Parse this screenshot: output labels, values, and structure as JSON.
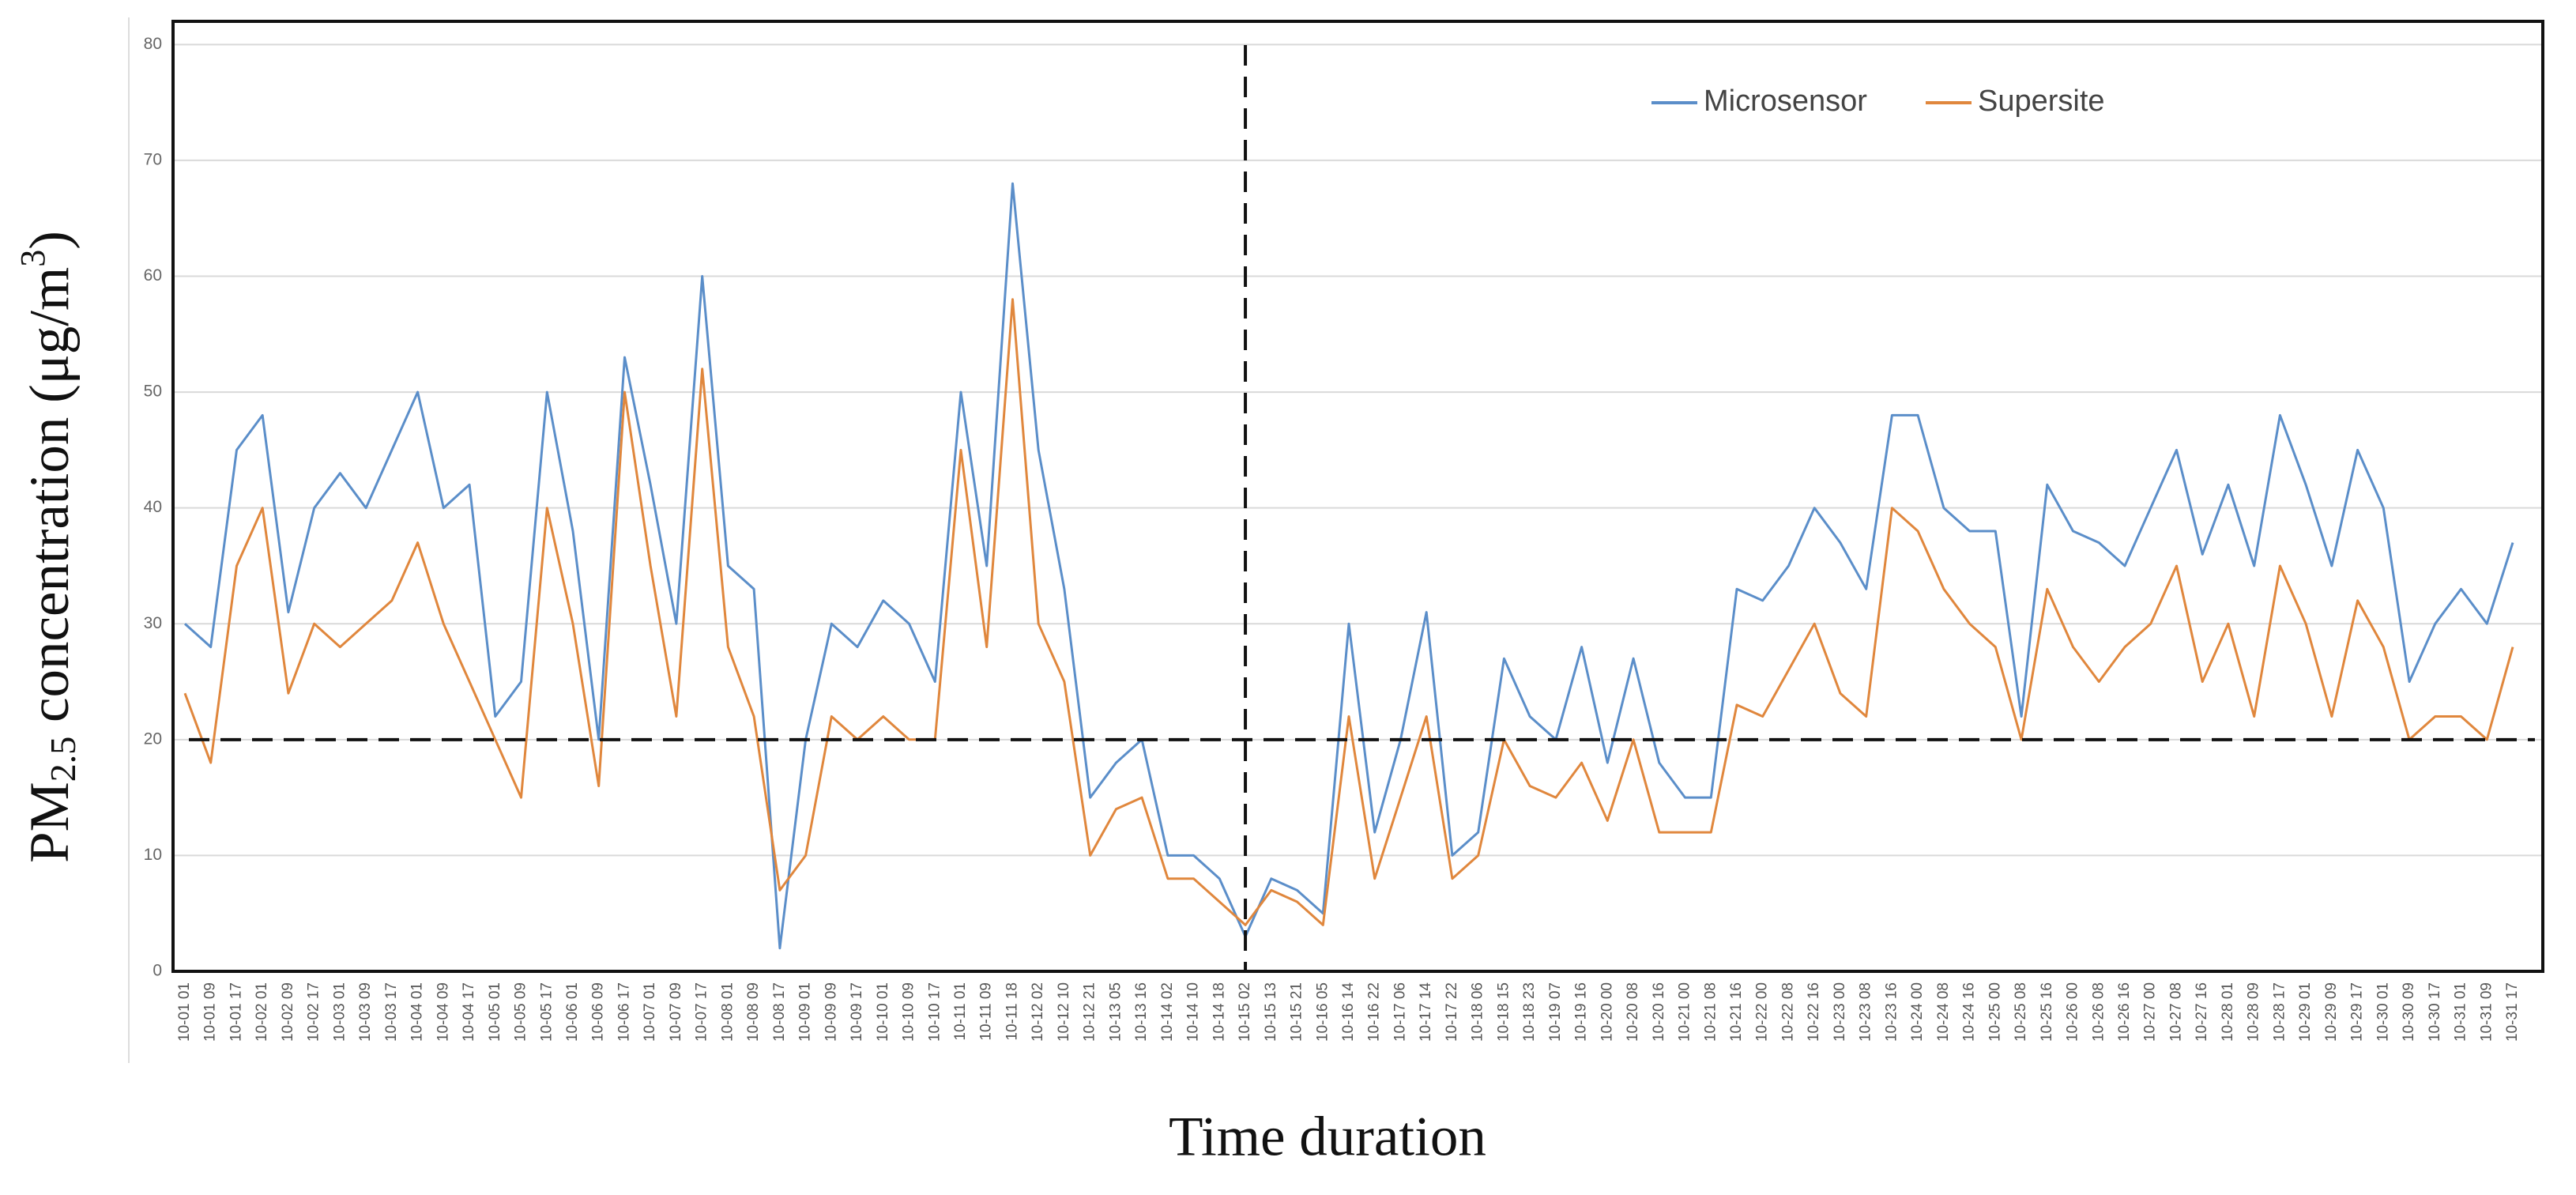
{
  "chart_data": {
    "type": "line",
    "y_label": {
      "main": "PM",
      "sub": "2.5",
      "rest": " concentration (μg/m",
      "sup": "3",
      "end": ")"
    },
    "x_label": "Time duration",
    "categories": [
      "10-01 01",
      "10-01 09",
      "10-01 17",
      "10-02 01",
      "10-02 09",
      "10-02 17",
      "10-03 01",
      "10-03 09",
      "10-03 17",
      "10-04 01",
      "10-04 09",
      "10-04 17",
      "10-05 01",
      "10-05 09",
      "10-05 17",
      "10-06 01",
      "10-06 09",
      "10-06 17",
      "10-07 01",
      "10-07 09",
      "10-07 17",
      "10-08 01",
      "10-08 09",
      "10-08 17",
      "10-09 01",
      "10-09 09",
      "10-09 17",
      "10-10 01",
      "10-10 09",
      "10-10 17",
      "10-11 01",
      "10-11 09",
      "10-11 18",
      "10-12 02",
      "10-12 10",
      "10-12 21",
      "10-13 05",
      "10-13 16",
      "10-14 02",
      "10-14 10",
      "10-14 18",
      "10-15 02",
      "10-15 13",
      "10-15 21",
      "10-16 05",
      "10-16 14",
      "10-16 22",
      "10-17 06",
      "10-17 14",
      "10-17 22",
      "10-18 06",
      "10-18 15",
      "10-18 23",
      "10-19 07",
      "10-19 16",
      "10-20 00",
      "10-20 08",
      "10-20 16",
      "10-21 00",
      "10-21 08",
      "10-21 16",
      "10-22 00",
      "10-22 08",
      "10-22 16",
      "10-23 00",
      "10-23 08",
      "10-23 16",
      "10-24 00",
      "10-24 08",
      "10-24 16",
      "10-25 00",
      "10-25 08",
      "10-25 16",
      "10-26 00",
      "10-26 08",
      "10-26 16",
      "10-27 00",
      "10-27 08",
      "10-27 16",
      "10-28 01",
      "10-28 09",
      "10-28 17",
      "10-29 01",
      "10-29 09",
      "10-29 17",
      "10-30 01",
      "10-30 09",
      "10-30 17",
      "10-31 01",
      "10-31 09",
      "10-31 17"
    ],
    "series": [
      {
        "name": "Microsensor",
        "color": "#5b8ec9",
        "values": [
          30,
          28,
          45,
          48,
          31,
          40,
          43,
          40,
          45,
          50,
          40,
          42,
          22,
          25,
          50,
          38,
          20,
          53,
          42,
          30,
          60,
          35,
          33,
          2,
          20,
          30,
          28,
          32,
          30,
          25,
          50,
          35,
          68,
          45,
          33,
          15,
          18,
          20,
          10,
          10,
          8,
          3,
          8,
          7,
          5,
          30,
          12,
          20,
          31,
          10,
          12,
          27,
          22,
          20,
          28,
          18,
          27,
          18,
          15,
          15,
          33,
          32,
          35,
          40,
          37,
          33,
          48,
          48,
          40,
          38,
          38,
          22,
          42,
          38,
          37,
          35,
          40,
          45,
          36,
          42,
          35,
          48,
          42,
          35,
          45,
          40,
          25,
          30,
          33,
          30,
          37
        ]
      },
      {
        "name": "Supersite",
        "color": "#e0873d",
        "values": [
          24,
          18,
          35,
          40,
          24,
          30,
          28,
          30,
          32,
          37,
          30,
          25,
          20,
          15,
          40,
          30,
          16,
          50,
          35,
          22,
          52,
          28,
          22,
          7,
          10,
          22,
          20,
          22,
          20,
          20,
          45,
          28,
          58,
          30,
          25,
          10,
          14,
          15,
          8,
          8,
          6,
          4,
          7,
          6,
          4,
          22,
          8,
          15,
          22,
          8,
          10,
          20,
          16,
          15,
          18,
          13,
          20,
          12,
          12,
          12,
          23,
          22,
          26,
          30,
          24,
          22,
          40,
          38,
          33,
          30,
          28,
          20,
          33,
          28,
          25,
          28,
          30,
          35,
          25,
          30,
          22,
          35,
          30,
          22,
          32,
          28,
          20,
          22,
          22,
          20,
          28
        ]
      }
    ],
    "ylim": [
      0,
      82
    ],
    "yticks": [
      0,
      10,
      20,
      30,
      40,
      50,
      60,
      70,
      80
    ],
    "grid": true,
    "legend": "top-right",
    "hline": 20,
    "vline": "10-15 02"
  }
}
